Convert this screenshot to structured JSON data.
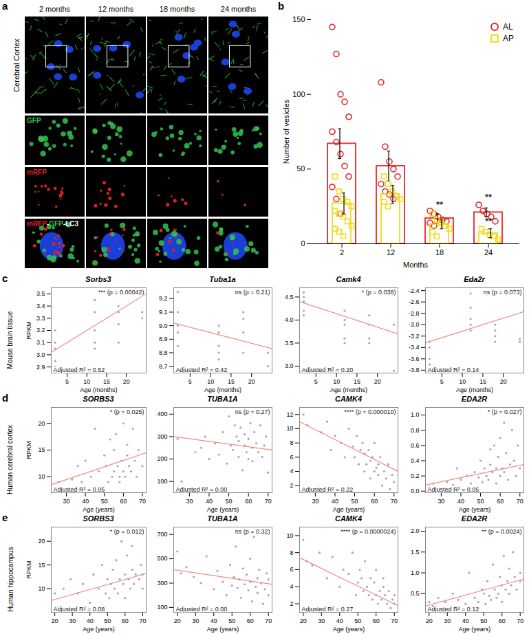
{
  "images": {
    "panel": "a",
    "row_label": "Cerebral Cortex",
    "columns": [
      "2 months",
      "12 months",
      "18 months",
      "24 months"
    ],
    "rows": [
      "GFP",
      "mRFP",
      "mRFP-GFP-LC3"
    ]
  },
  "chart_data": [
    {
      "panel": "b",
      "type": "bar",
      "x_label": "Months",
      "y_label": "Number of vesicles",
      "categories": [
        "2",
        "12",
        "18",
        "24"
      ],
      "ylim": [
        0,
        150
      ],
      "yticks": [
        0,
        50,
        100,
        150
      ],
      "legend": "top-right",
      "series": [
        {
          "name": "AL",
          "color": "#e8262b",
          "marker": "circle",
          "values": [
            67,
            52,
            17,
            21
          ],
          "errors": [
            10,
            10,
            3,
            3
          ],
          "points": [
            [
              145,
              127,
              100,
              95,
              85,
              75,
              68,
              60,
              52,
              45,
              38,
              30,
              20
            ],
            [
              108,
              65,
              55,
              50,
              45,
              40,
              35,
              33,
              30
            ],
            [
              22,
              20,
              18,
              16,
              15,
              14,
              12
            ],
            [
              26,
              22,
              20,
              18,
              15
            ]
          ]
        },
        {
          "name": "AP",
          "color": "#f0dc1e",
          "marker": "square",
          "values": [
            27,
            33,
            13,
            7
          ],
          "errors": [
            7,
            6,
            3,
            3
          ],
          "points": [
            [
              45,
              35,
              30,
              28,
              25,
              22,
              20,
              18,
              15,
              12,
              10,
              8,
              5
            ],
            [
              45,
              40,
              35,
              32,
              30,
              28,
              25
            ],
            [
              20,
              16,
              14,
              12,
              10,
              8,
              5
            ],
            [
              10,
              8,
              6,
              5,
              3
            ]
          ]
        }
      ],
      "annotations": [
        {
          "category": "18",
          "y": 24,
          "text": "**"
        },
        {
          "category": "24",
          "y": 29,
          "text": "**"
        },
        {
          "category": "24",
          "y": 13,
          "text": "**"
        }
      ]
    },
    {
      "panel": "c",
      "type": "scatter",
      "row_label": "Mouse brain tissue",
      "x_label": "Age (months)",
      "y_label": "RPKM",
      "x": [
        2,
        2,
        2,
        2,
        2,
        12,
        12,
        12,
        12,
        12,
        18,
        18,
        18,
        18,
        24,
        24
      ],
      "xlim": [
        1,
        25
      ],
      "xticks": [
        5,
        10,
        15,
        20
      ],
      "plots": [
        {
          "title": "Sorbs3",
          "ylim": [
            2.85,
            3.55
          ],
          "yticks": [
            2.9,
            {
              "value": 3,
              "label": "3.0"
            },
            3.1,
            3.2,
            3.3,
            3.4,
            3.5
          ],
          "values": [
            2.9,
            2.95,
            3.05,
            3.1,
            3.2,
            3.05,
            3.1,
            3.2,
            3.35,
            3.45,
            3.1,
            3.25,
            3.35,
            3.4,
            3.3,
            3.35
          ],
          "fit": {
            "x": [
              1,
              25
            ],
            "y": [
              3.02,
              3.5
            ]
          },
          "annotation": "*** (p = 0.00042)",
          "r2_label": "Adjusted R² = 0.52"
        },
        {
          "title": "Tuba1a",
          "ylim": [
            8.65,
            9.28
          ],
          "yticks": [
            8.7,
            8.8,
            8.9,
            {
              "value": 9,
              "label": "9.0"
            },
            9.1,
            9.2
          ],
          "values": [
            9.25,
            9.1,
            9.0,
            8.95,
            8.85,
            9.0,
            8.95,
            8.85,
            8.8,
            8.75,
            9.1,
            9.05,
            8.95,
            8.8,
            8.8,
            8.7
          ],
          "fit": {
            "x": [
              1,
              25
            ],
            "y": [
              9.02,
              8.83
            ]
          },
          "annotation": "ns (p = 0.21)",
          "r2_label": "Adjusted R² = 0.42"
        },
        {
          "title": "Camk4",
          "ylim": [
            2.85,
            4.7
          ],
          "yticks": [
            {
              "value": 3,
              "label": "3.0"
            },
            3.5,
            {
              "value": 4,
              "label": "4.0"
            },
            4.5
          ],
          "values": [
            4.6,
            4.5,
            4.4,
            4.2,
            4.1,
            4.2,
            4.0,
            3.9,
            3.6,
            3.5,
            4.1,
            3.9,
            3.6,
            3.5,
            3.9,
            2.9
          ],
          "fit": {
            "x": [
              1,
              25
            ],
            "y": [
              4.4,
              3.7
            ]
          },
          "annotation": "* (p = 0.038)",
          "r2_label": "Adjusted R² = 0.20"
        },
        {
          "title": "Eda2r",
          "ylim": [
            -3.85,
            -2.35
          ],
          "yticks": [
            -3.8,
            -3.6,
            -3.4,
            -3.2,
            {
              "value": -3,
              "label": "-3.0"
            },
            -2.8,
            -2.6,
            -2.4
          ],
          "values": [
            -3.8,
            -3.7,
            -3.6,
            -3.4,
            -3.3,
            -3.1,
            -3.0,
            -2.9,
            -2.7,
            -2.45,
            -3.3,
            -3.2,
            -3.1,
            -3.0,
            -3.3,
            -3.25
          ],
          "fit": {
            "x": [
              1,
              25
            ],
            "y": [
              -3.32,
              -2.77
            ]
          },
          "annotation": "ns (p = 0.073)",
          "r2_label": "Adjusted R² = 0.14"
        }
      ]
    },
    {
      "panel": "d",
      "type": "scatter",
      "row_label": "Human cerebral cortex",
      "x_label": "Age (years)",
      "y_label": "RPKM",
      "x": [
        24,
        26,
        33,
        36,
        38,
        40,
        43,
        45,
        47,
        49,
        50,
        51,
        52,
        53,
        54,
        55,
        55,
        56,
        57,
        58,
        58,
        59,
        60,
        60,
        61,
        62,
        62,
        63,
        64,
        65,
        66,
        67,
        68,
        69,
        70
      ],
      "xlim": [
        22,
        72
      ],
      "xticks": [
        30,
        40,
        50,
        60,
        70
      ],
      "plots": [
        {
          "title": "SORBS3",
          "ylim": [
            7,
            23
          ],
          "yticks": [
            10,
            15,
            20
          ],
          "values": [
            7.5,
            9,
            9.5,
            12,
            9,
            13,
            10,
            19,
            11,
            8,
            14,
            12,
            9,
            17,
            10,
            11,
            15,
            18,
            12,
            10,
            9,
            13,
            11,
            20,
            10,
            14,
            16,
            12,
            11,
            19,
            13,
            10,
            15,
            22,
            12
          ],
          "fit": {
            "x": [
              22,
              72
            ],
            "y": [
              8.5,
              14.5
            ]
          },
          "annotation": "* (p = 0.025)",
          "r2_label": "Adjusted R² = 0.05"
        },
        {
          "title": "TUBA1A",
          "ylim": [
            50,
            430
          ],
          "yticks": [
            100,
            200,
            300,
            400
          ],
          "values": [
            290,
            100,
            230,
            250,
            300,
            200,
            270,
            220,
            320,
            180,
            390,
            260,
            240,
            350,
            300,
            210,
            280,
            340,
            150,
            260,
            310,
            230,
            290,
            200,
            360,
            250,
            190,
            320,
            270,
            230,
            350,
            210,
            260,
            300,
            140
          ],
          "fit": {
            "x": [
              22,
              72
            ],
            "y": [
              300,
              240
            ]
          },
          "annotation": "ns (p = 0.27)",
          "r2_label": "Adjusted R² = 0.00"
        },
        {
          "title": "CAMK4",
          "ylim": [
            1,
            13
          ],
          "yticks": [
            2,
            4,
            6,
            8,
            10,
            12
          ],
          "values": [
            12,
            10.5,
            9.5,
            11,
            7,
            9,
            8,
            6,
            10,
            7.5,
            6,
            9,
            5,
            7,
            8,
            4,
            6.5,
            5,
            7,
            3,
            5.5,
            6,
            4,
            8,
            4.5,
            3.5,
            5,
            6,
            2,
            4,
            3,
            5,
            1.5,
            3.5,
            2.5
          ],
          "fit": {
            "x": [
              22,
              72
            ],
            "y": [
              11,
              4
            ]
          },
          "annotation": "**** (p = 0.000010)",
          "r2_label": "Adjusted R² = 0.22"
        },
        {
          "title": "EDA2R",
          "ylim": [
            -0.02,
            1.1
          ],
          "yticks": [
            {
              "value": 0,
              "label": "0.0"
            },
            0.2,
            0.4,
            0.6,
            0.8,
            {
              "value": 1,
              "label": "1.0"
            }
          ],
          "values": [
            0.05,
            0.1,
            0.12,
            0.08,
            0.3,
            0.15,
            0.2,
            0.1,
            0.25,
            0.18,
            0.4,
            0.12,
            0.3,
            0.2,
            0.15,
            0.55,
            0.35,
            0.25,
            0.6,
            0.1,
            0.3,
            0.45,
            0.2,
            0.7,
            0.3,
            0.9,
            0.25,
            0.5,
            0.15,
            0.35,
            0.8,
            0.4,
            0.2,
            0.6,
            0.3
          ],
          "fit": {
            "x": [
              22,
              72
            ],
            "y": [
              0.08,
              0.35
            ]
          },
          "annotation": "* (p = 0.027)",
          "r2_label": "Adjusted R² = 0.05"
        }
      ]
    },
    {
      "panel": "e",
      "type": "scatter",
      "row_label": "Human hippocampus",
      "x_label": "Age (years)",
      "y_label": "RPKM",
      "x": [
        20,
        22,
        25,
        29,
        33,
        36,
        40,
        42,
        45,
        47,
        49,
        50,
        51,
        52,
        53,
        54,
        55,
        56,
        57,
        58,
        59,
        60,
        60,
        61,
        62,
        63,
        64,
        64,
        65,
        66,
        67,
        68,
        69,
        70,
        70
      ],
      "xlim": [
        18,
        72
      ],
      "xticks": [
        20,
        30,
        40,
        50,
        60,
        70
      ],
      "plots": [
        {
          "title": "SORBS3",
          "ylim": [
            5,
            23
          ],
          "yticks": [
            10,
            15,
            20
          ],
          "values": [
            9,
            6,
            10,
            12,
            9,
            11,
            7,
            13,
            10,
            15,
            9,
            12,
            8,
            11,
            14,
            10,
            16,
            9,
            12,
            20,
            11,
            13,
            8,
            17,
            12,
            10,
            14,
            19,
            11,
            13,
            22,
            12,
            15,
            10,
            13
          ],
          "fit": {
            "x": [
              18,
              72
            ],
            "y": [
              7.5,
              13.2
            ]
          },
          "annotation": "* (p = 0.012)",
          "r2_label": "Adjusted R² = 0.08"
        },
        {
          "title": "TUBA1A",
          "ylim": [
            60,
            760
          ],
          "yticks": [
            100,
            300,
            500,
            700
          ],
          "values": [
            560,
            380,
            430,
            350,
            300,
            520,
            250,
            400,
            310,
            200,
            450,
            280,
            350,
            600,
            260,
            330,
            180,
            420,
            290,
            370,
            240,
            500,
            310,
            150,
            680,
            270,
            340,
            220,
            410,
            300,
            130,
            250,
            380,
            200,
            330
          ],
          "fit": {
            "x": [
              18,
              72
            ],
            "y": [
              410,
              290
            ]
          },
          "annotation": "ns (p = 0.32)",
          "r2_label": "Adjusted R² = 0.00"
        },
        {
          "title": "CAMK4",
          "ylim": [
            1,
            11
          ],
          "yticks": [
            2,
            4,
            6,
            8,
            10
          ],
          "values": [
            9.5,
            7,
            6.5,
            8,
            5,
            7.5,
            4,
            6,
            5.5,
            8,
            3,
            4.5,
            6,
            5,
            3.5,
            7,
            4,
            3,
            5,
            2.5,
            4.5,
            3,
            6,
            2,
            3.5,
            2.5,
            4,
            5,
            3,
            2,
            3.5,
            1.5,
            2.5,
            3,
            2
          ],
          "fit": {
            "x": [
              18,
              72
            ],
            "y": [
              7.4,
              1.8
            ]
          },
          "annotation": "**** (p = 0.0000024)",
          "r2_label": "Adjusted R² = 0.27"
        },
        {
          "title": "EDA2R",
          "ylim": [
            0.05,
            2.1
          ],
          "yticks": [
            0.5,
            {
              "value": 1,
              "label": "1.0"
            },
            1.5,
            {
              "value": 2,
              "label": "2.0"
            }
          ],
          "values": [
            0.3,
            0.2,
            0.4,
            0.3,
            0.5,
            0.35,
            0.25,
            1.0,
            0.4,
            0.3,
            0.6,
            0.5,
            0.25,
            0.8,
            0.45,
            0.35,
            1.2,
            0.6,
            0.4,
            0.5,
            0.9,
            0.3,
            0.7,
            1.4,
            0.6,
            0.8,
            0.5,
            1.1,
            0.7,
            1.5,
            0.9,
            0.6,
            2.0,
            1.0,
            0.8
          ],
          "fit": {
            "x": [
              18,
              72
            ],
            "y": [
              0.2,
              0.85
            ]
          },
          "annotation": "** (p = 0.0024)",
          "r2_label": "Adjusted R² = 0.12"
        }
      ]
    }
  ]
}
